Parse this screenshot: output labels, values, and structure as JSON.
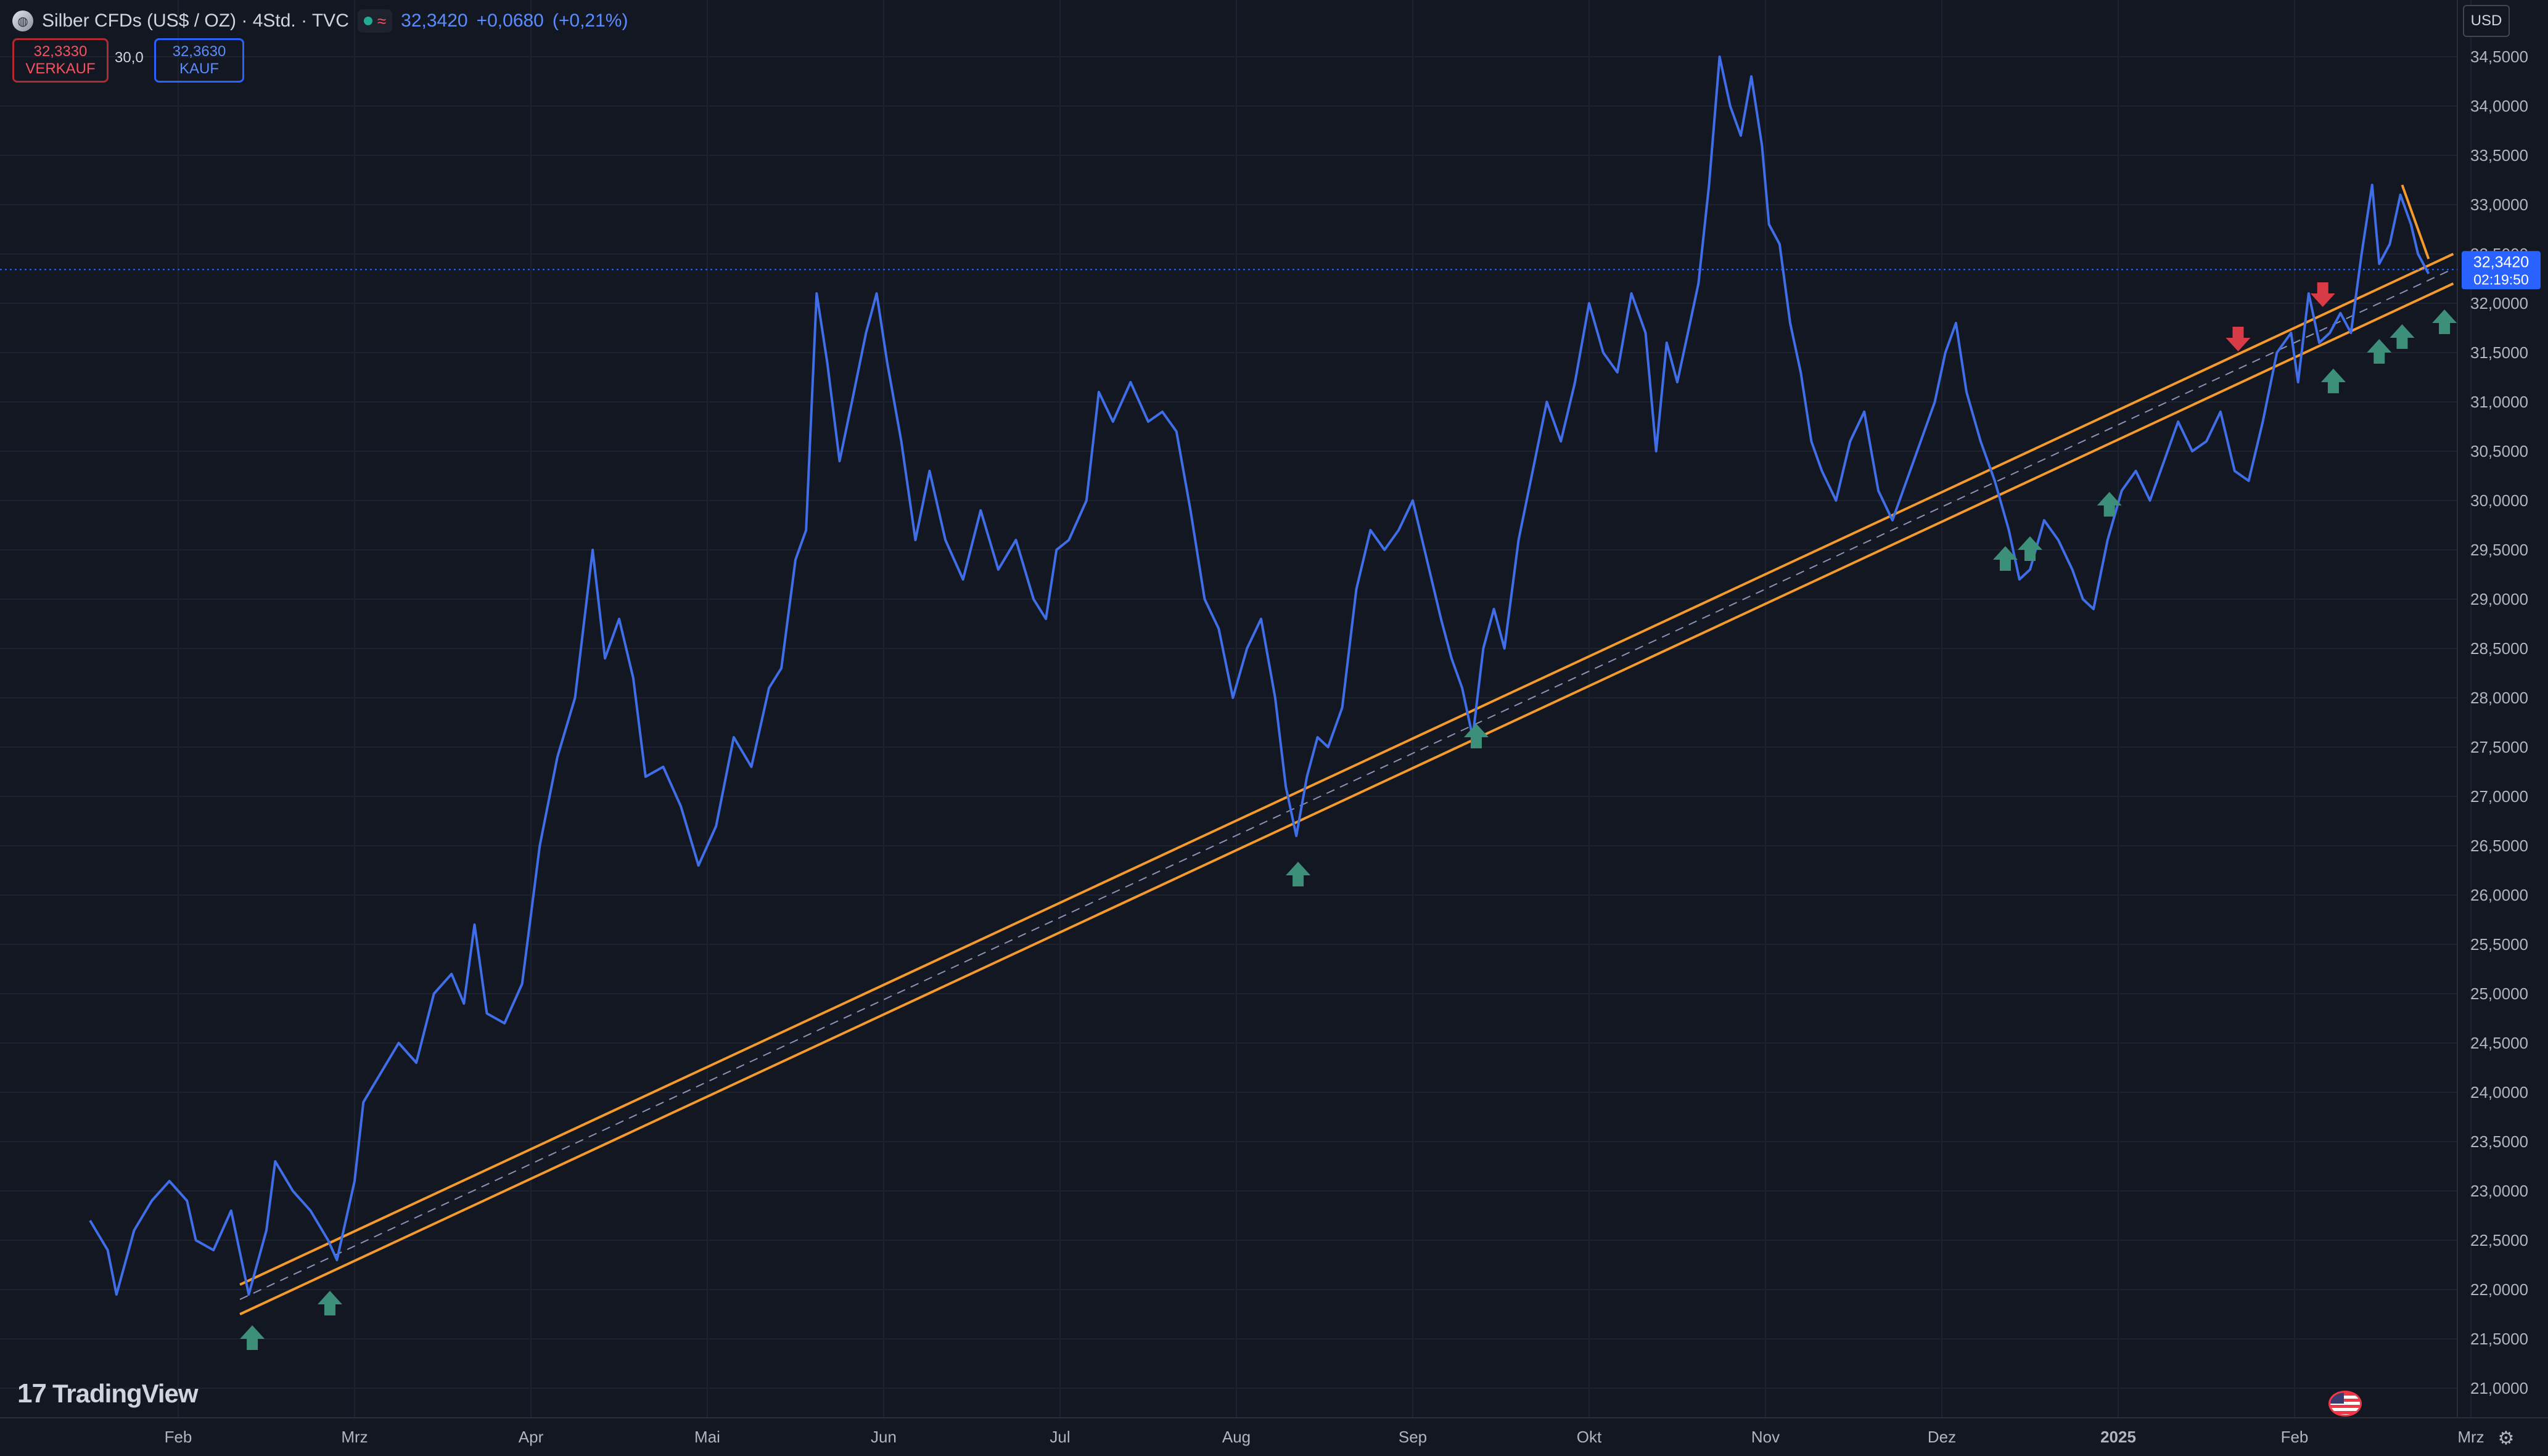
{
  "header": {
    "symbol_title": "Silber CFDs (US$ / OZ) · 4Std. · TVC",
    "status_glyph": "≈",
    "last_price": "32,3420",
    "change": "+0,0680",
    "change_pct": "(+0,21%)"
  },
  "trade": {
    "sell_price": "32,3330",
    "sell_label": "VERKAUF",
    "spread": "30,0",
    "buy_price": "32,3630",
    "buy_label": "KAUF"
  },
  "currency_button": "USD",
  "branding": {
    "logo_mark": "17",
    "logo_text": "TradingView"
  },
  "icons": {
    "settings": "gear-icon",
    "flag": "us-flag-icon",
    "symbol": "silver-symbol-icon"
  },
  "colors": {
    "background": "#131722",
    "grid": "#1e2230",
    "price_line": "#3f6ee8",
    "channel": "#f59b2b",
    "channel_mid": "#8b93b8",
    "up_arrow": "#3c8f78",
    "down_arrow": "#d83b45",
    "axis_text": "#b2b5be",
    "current_price_bg": "#2962ff"
  },
  "chart_data": {
    "type": "line",
    "title": "Silber CFDs (US$ / OZ) · 4Std. · TVC",
    "xlabel": "",
    "ylabel": "",
    "ylim": [
      20.75,
      34.75
    ],
    "grid": true,
    "y_ticks": [
      "34,5000",
      "34,0000",
      "33,5000",
      "33,0000",
      "32,5000",
      "32,0000",
      "31,5000",
      "31,0000",
      "30,5000",
      "30,0000",
      "29,5000",
      "29,0000",
      "28,5000",
      "28,0000",
      "27,5000",
      "27,0000",
      "26,5000",
      "26,0000",
      "25,5000",
      "25,0000",
      "24,5000",
      "24,0000",
      "23,5000",
      "23,0000",
      "22,5000",
      "22,0000",
      "21,5000",
      "21,0000"
    ],
    "x_ticks": [
      {
        "label": "Feb",
        "t": 0.5
      },
      {
        "label": "Mrz",
        "t": 1.5
      },
      {
        "label": "Apr",
        "t": 2.5
      },
      {
        "label": "Mai",
        "t": 3.5
      },
      {
        "label": "Jun",
        "t": 4.5
      },
      {
        "label": "Jul",
        "t": 5.5
      },
      {
        "label": "Aug",
        "t": 6.5
      },
      {
        "label": "Sep",
        "t": 7.5
      },
      {
        "label": "Okt",
        "t": 8.5
      },
      {
        "label": "Nov",
        "t": 9.5
      },
      {
        "label": "Dez",
        "t": 10.5
      },
      {
        "label": "2025",
        "t": 11.5,
        "bold": true
      },
      {
        "label": "Feb",
        "t": 12.5
      },
      {
        "label": "Mrz",
        "t": 13.5
      }
    ],
    "current_price": {
      "value": 32.342,
      "label": "32,3420",
      "timer": "02:19:50"
    },
    "series": [
      {
        "values": [
          [
            0.0,
            22.7
          ],
          [
            0.1,
            22.4
          ],
          [
            0.15,
            21.95
          ],
          [
            0.25,
            22.6
          ],
          [
            0.35,
            22.9
          ],
          [
            0.45,
            23.1
          ],
          [
            0.55,
            22.9
          ],
          [
            0.6,
            22.5
          ],
          [
            0.7,
            22.4
          ],
          [
            0.8,
            22.8
          ],
          [
            0.9,
            21.95
          ],
          [
            1.0,
            22.6
          ],
          [
            1.05,
            23.3
          ],
          [
            1.15,
            23.0
          ],
          [
            1.25,
            22.8
          ],
          [
            1.35,
            22.5
          ],
          [
            1.4,
            22.3
          ],
          [
            1.5,
            23.1
          ],
          [
            1.55,
            23.9
          ],
          [
            1.65,
            24.2
          ],
          [
            1.75,
            24.5
          ],
          [
            1.85,
            24.3
          ],
          [
            1.95,
            25.0
          ],
          [
            2.05,
            25.2
          ],
          [
            2.12,
            24.9
          ],
          [
            2.18,
            25.7
          ],
          [
            2.25,
            24.8
          ],
          [
            2.35,
            24.7
          ],
          [
            2.45,
            25.1
          ],
          [
            2.55,
            26.5
          ],
          [
            2.65,
            27.4
          ],
          [
            2.75,
            28.0
          ],
          [
            2.85,
            29.5
          ],
          [
            2.92,
            28.4
          ],
          [
            3.0,
            28.8
          ],
          [
            3.08,
            28.2
          ],
          [
            3.15,
            27.2
          ],
          [
            3.25,
            27.3
          ],
          [
            3.35,
            26.9
          ],
          [
            3.45,
            26.3
          ],
          [
            3.55,
            26.7
          ],
          [
            3.65,
            27.6
          ],
          [
            3.75,
            27.3
          ],
          [
            3.85,
            28.1
          ],
          [
            3.92,
            28.3
          ],
          [
            4.0,
            29.4
          ],
          [
            4.06,
            29.7
          ],
          [
            4.12,
            32.1
          ],
          [
            4.18,
            31.4
          ],
          [
            4.25,
            30.4
          ],
          [
            4.32,
            31.0
          ],
          [
            4.4,
            31.7
          ],
          [
            4.46,
            32.1
          ],
          [
            4.52,
            31.4
          ],
          [
            4.6,
            30.6
          ],
          [
            4.68,
            29.6
          ],
          [
            4.76,
            30.3
          ],
          [
            4.85,
            29.6
          ],
          [
            4.95,
            29.2
          ],
          [
            5.05,
            29.9
          ],
          [
            5.15,
            29.3
          ],
          [
            5.25,
            29.6
          ],
          [
            5.35,
            29.0
          ],
          [
            5.42,
            28.8
          ],
          [
            5.48,
            29.5
          ],
          [
            5.55,
            29.6
          ],
          [
            5.65,
            30.0
          ],
          [
            5.72,
            31.1
          ],
          [
            5.8,
            30.8
          ],
          [
            5.9,
            31.2
          ],
          [
            6.0,
            30.8
          ],
          [
            6.08,
            30.9
          ],
          [
            6.16,
            30.7
          ],
          [
            6.24,
            29.9
          ],
          [
            6.32,
            29.0
          ],
          [
            6.4,
            28.7
          ],
          [
            6.48,
            28.0
          ],
          [
            6.56,
            28.5
          ],
          [
            6.64,
            28.8
          ],
          [
            6.72,
            28.0
          ],
          [
            6.78,
            27.1
          ],
          [
            6.84,
            26.6
          ],
          [
            6.9,
            27.2
          ],
          [
            6.96,
            27.6
          ],
          [
            7.02,
            27.5
          ],
          [
            7.1,
            27.9
          ],
          [
            7.18,
            29.1
          ],
          [
            7.26,
            29.7
          ],
          [
            7.34,
            29.5
          ],
          [
            7.42,
            29.7
          ],
          [
            7.5,
            30.0
          ],
          [
            7.58,
            29.4
          ],
          [
            7.66,
            28.8
          ],
          [
            7.72,
            28.4
          ],
          [
            7.78,
            28.1
          ],
          [
            7.84,
            27.6
          ],
          [
            7.9,
            28.5
          ],
          [
            7.96,
            28.9
          ],
          [
            8.02,
            28.5
          ],
          [
            8.1,
            29.6
          ],
          [
            8.18,
            30.3
          ],
          [
            8.26,
            31.0
          ],
          [
            8.34,
            30.6
          ],
          [
            8.42,
            31.2
          ],
          [
            8.5,
            32.0
          ],
          [
            8.58,
            31.5
          ],
          [
            8.66,
            31.3
          ],
          [
            8.74,
            32.1
          ],
          [
            8.82,
            31.7
          ],
          [
            8.88,
            30.5
          ],
          [
            8.94,
            31.6
          ],
          [
            9.0,
            31.2
          ],
          [
            9.06,
            31.7
          ],
          [
            9.12,
            32.2
          ],
          [
            9.18,
            33.2
          ],
          [
            9.24,
            34.5
          ],
          [
            9.3,
            34.0
          ],
          [
            9.36,
            33.7
          ],
          [
            9.42,
            34.3
          ],
          [
            9.48,
            33.6
          ],
          [
            9.52,
            32.8
          ],
          [
            9.58,
            32.6
          ],
          [
            9.64,
            31.8
          ],
          [
            9.7,
            31.3
          ],
          [
            9.76,
            30.6
          ],
          [
            9.82,
            30.3
          ],
          [
            9.9,
            30.0
          ],
          [
            9.98,
            30.6
          ],
          [
            10.06,
            30.9
          ],
          [
            10.14,
            30.1
          ],
          [
            10.22,
            29.8
          ],
          [
            10.3,
            30.2
          ],
          [
            10.38,
            30.6
          ],
          [
            10.46,
            31.0
          ],
          [
            10.52,
            31.5
          ],
          [
            10.58,
            31.8
          ],
          [
            10.64,
            31.1
          ],
          [
            10.72,
            30.6
          ],
          [
            10.8,
            30.2
          ],
          [
            10.88,
            29.7
          ],
          [
            10.94,
            29.2
          ],
          [
            11.0,
            29.3
          ],
          [
            11.08,
            29.8
          ],
          [
            11.16,
            29.6
          ],
          [
            11.24,
            29.3
          ],
          [
            11.3,
            29.0
          ],
          [
            11.36,
            28.9
          ],
          [
            11.44,
            29.6
          ],
          [
            11.52,
            30.1
          ],
          [
            11.6,
            30.3
          ],
          [
            11.68,
            30.0
          ],
          [
            11.76,
            30.4
          ],
          [
            11.84,
            30.8
          ],
          [
            11.92,
            30.5
          ],
          [
            12.0,
            30.6
          ],
          [
            12.08,
            30.9
          ],
          [
            12.16,
            30.3
          ],
          [
            12.24,
            30.2
          ],
          [
            12.32,
            30.8
          ],
          [
            12.4,
            31.5
          ],
          [
            12.48,
            31.7
          ],
          [
            12.52,
            31.2
          ],
          [
            12.58,
            32.1
          ],
          [
            12.64,
            31.6
          ],
          [
            12.7,
            31.7
          ],
          [
            12.76,
            31.9
          ],
          [
            12.82,
            31.7
          ],
          [
            12.88,
            32.5
          ],
          [
            12.94,
            33.2
          ],
          [
            12.98,
            32.4
          ],
          [
            13.04,
            32.6
          ],
          [
            13.1,
            33.1
          ],
          [
            13.16,
            32.8
          ],
          [
            13.2,
            32.5
          ],
          [
            13.26,
            32.3
          ]
        ]
      }
    ],
    "channel": {
      "start": {
        "t": 0.85,
        "upper": 22.05,
        "mid": 21.9,
        "lower": 21.75
      },
      "end": {
        "t": 13.4,
        "upper": 32.5,
        "mid": 32.35,
        "lower": 32.2
      }
    },
    "short_trendline": {
      "start": {
        "t": 13.11,
        "v": 33.2
      },
      "end": {
        "t": 13.26,
        "v": 32.45
      }
    },
    "up_arrows": [
      {
        "t": 0.92,
        "v": 21.5
      },
      {
        "t": 1.36,
        "v": 21.85
      },
      {
        "t": 6.85,
        "v": 26.2
      },
      {
        "t": 7.86,
        "v": 27.6
      },
      {
        "t": 10.86,
        "v": 29.4
      },
      {
        "t": 11.0,
        "v": 29.5
      },
      {
        "t": 11.45,
        "v": 29.95
      },
      {
        "t": 12.72,
        "v": 31.2
      },
      {
        "t": 12.98,
        "v": 31.5
      },
      {
        "t": 13.11,
        "v": 31.65
      },
      {
        "t": 13.35,
        "v": 31.8
      }
    ],
    "down_arrows": [
      {
        "t": 12.18,
        "v": 31.65
      },
      {
        "t": 12.66,
        "v": 32.1
      }
    ]
  }
}
